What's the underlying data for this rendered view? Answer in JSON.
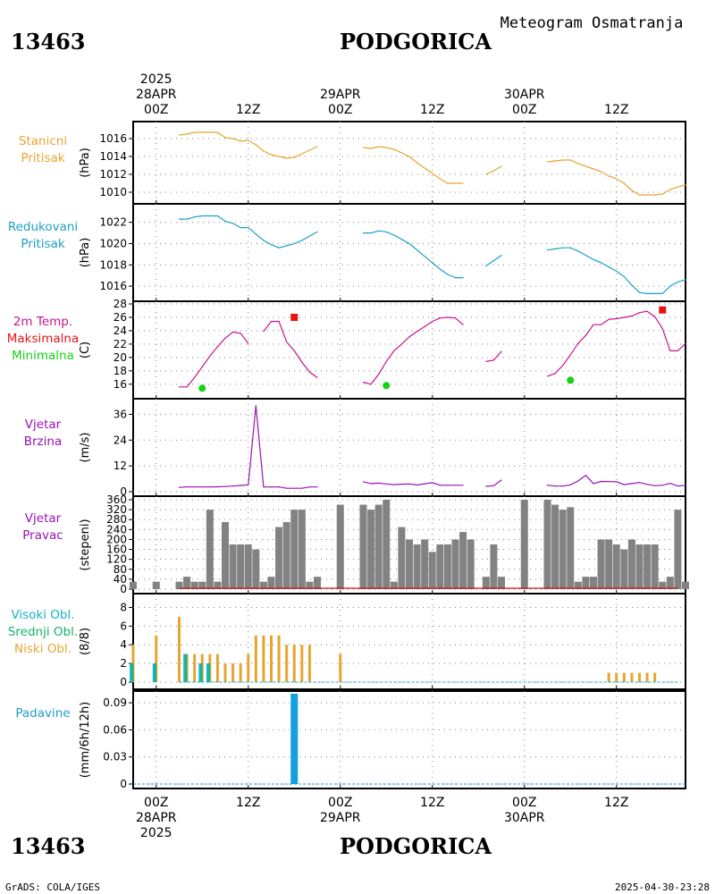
{
  "header": {
    "station_id": "13463",
    "station_name": "PODGORICA",
    "product": "Meteogram Osmatranja"
  },
  "footer": {
    "station_id": "13463",
    "station_name": "PODGORICA",
    "credit": "GrADS: COLA/IGES",
    "timestamp": "2025-04-30-23:28"
  },
  "time_axis": {
    "year": "2025",
    "ticks": [
      {
        "hour": 0,
        "top": [
          "2025",
          "28APR",
          "00Z"
        ],
        "bottom": [
          "00Z",
          "28APR",
          "2025"
        ]
      },
      {
        "hour": 12,
        "top": [
          "12Z"
        ],
        "bottom": [
          "12Z"
        ]
      },
      {
        "hour": 24,
        "top": [
          "29APR",
          "00Z"
        ],
        "bottom": [
          "00Z",
          "29APR"
        ]
      },
      {
        "hour": 36,
        "top": [
          "12Z"
        ],
        "bottom": [
          "12Z"
        ]
      },
      {
        "hour": 48,
        "top": [
          "30APR",
          "00Z"
        ],
        "bottom": [
          "00Z",
          "30APR"
        ]
      },
      {
        "hour": 60,
        "top": [
          "12Z"
        ],
        "bottom": [
          "12Z"
        ]
      }
    ],
    "range_hours": [
      -3,
      69
    ]
  },
  "colors": {
    "station_pressure": "#e6a532",
    "reduced_pressure": "#1ea0c8",
    "temp": "#c8148c",
    "tmax": "#e61414",
    "tmin": "#14d214",
    "wind": "#9614b4",
    "wind_dir": "#828282",
    "wind_dir_zero": "#c81414",
    "cloud_high": "#14b4c8",
    "cloud_mid": "#14b464",
    "cloud_low": "#e6a532",
    "precip": "#14a0dc",
    "label_station": "#e6a532",
    "label_reduced": "#1ea0c8",
    "label_wind": "#9614b4",
    "label_precip": "#1ea0c8"
  },
  "chart_data": [
    {
      "type": "line",
      "panel": "station_pressure",
      "label": [
        "Stanicni",
        "Pritisak"
      ],
      "label_color": "station_pressure",
      "ylabel": "(hPa)",
      "ylim": [
        1009.2,
        1017.2
      ],
      "yticks": [
        1010,
        1012,
        1014,
        1016
      ],
      "series": [
        {
          "x": [
            3,
            4,
            5,
            6,
            7,
            8,
            9,
            10,
            11,
            12,
            13,
            14,
            15,
            16,
            17,
            18,
            19,
            20,
            21,
            27,
            28,
            29,
            30,
            31,
            32,
            33,
            34,
            35,
            36,
            37,
            38,
            39,
            40,
            43,
            44,
            45,
            51,
            52,
            53,
            54,
            55,
            56,
            57,
            58,
            59,
            60,
            61,
            62,
            63,
            64,
            65,
            66,
            67,
            68,
            69
          ],
          "y": [
            1016.4,
            1016.5,
            1016.7,
            1016.7,
            1016.7,
            1016.7,
            1016.1,
            1016.0,
            1015.7,
            1015.8,
            1015.3,
            1014.6,
            1014.2,
            1014.0,
            1013.8,
            1013.9,
            1014.3,
            1014.7,
            1015.1,
            1015.0,
            1014.9,
            1015.1,
            1015.0,
            1014.8,
            1014.4,
            1014.0,
            1013.3,
            1012.7,
            1012.1,
            1011.5,
            1011.0,
            1011.0,
            1011.0,
            1012.0,
            1012.4,
            1012.9,
            1013.4,
            1013.5,
            1013.6,
            1013.6,
            1013.2,
            1012.9,
            1012.6,
            1012.3,
            1011.8,
            1011.5,
            1011.0,
            1010.2,
            1009.7,
            1009.7,
            1009.7,
            1009.8,
            1010.3,
            1010.6,
            1010.8
          ],
          "breaks_after": [
            21,
            40,
            45
          ]
        }
      ]
    },
    {
      "type": "line",
      "panel": "reduced_pressure",
      "label": [
        "Redukovani",
        "Pritisak"
      ],
      "label_color": "reduced_pressure",
      "ylabel": "(hPa)",
      "ylim": [
        1015.0,
        1023.4
      ],
      "yticks": [
        1016,
        1018,
        1020,
        1022
      ],
      "series": [
        {
          "x": [
            3,
            4,
            5,
            6,
            7,
            8,
            9,
            10,
            11,
            12,
            13,
            14,
            15,
            16,
            17,
            18,
            19,
            20,
            21,
            27,
            28,
            29,
            30,
            31,
            32,
            33,
            34,
            35,
            36,
            37,
            38,
            39,
            40,
            43,
            44,
            45,
            51,
            52,
            53,
            54,
            55,
            56,
            57,
            58,
            59,
            60,
            61,
            62,
            63,
            64,
            65,
            66,
            67,
            68,
            69
          ],
          "y": [
            1022.3,
            1022.3,
            1022.5,
            1022.6,
            1022.6,
            1022.6,
            1022.1,
            1021.9,
            1021.5,
            1021.5,
            1020.9,
            1020.3,
            1019.9,
            1019.6,
            1019.8,
            1020.0,
            1020.3,
            1020.7,
            1021.1,
            1021.0,
            1021.0,
            1021.2,
            1021.1,
            1020.8,
            1020.4,
            1020.0,
            1019.4,
            1018.8,
            1018.2,
            1017.6,
            1017.1,
            1016.8,
            1016.8,
            1017.9,
            1018.4,
            1018.9,
            1019.4,
            1019.5,
            1019.6,
            1019.6,
            1019.3,
            1018.9,
            1018.5,
            1018.2,
            1017.8,
            1017.4,
            1016.9,
            1016.1,
            1015.4,
            1015.3,
            1015.3,
            1015.3,
            1016.0,
            1016.4,
            1016.6
          ],
          "breaks_after": [
            21,
            40,
            45
          ]
        }
      ]
    },
    {
      "type": "line",
      "panel": "temperature",
      "label": [
        "2m Temp.",
        "Maksimalna",
        "Minimalna"
      ],
      "label_colors": [
        "temp",
        "tmax",
        "tmin"
      ],
      "ylabel": "(C)",
      "ylim": [
        14.5,
        28
      ],
      "yticks": [
        16,
        18,
        20,
        22,
        24,
        26,
        28
      ],
      "series": [
        {
          "name": "2m Temp.",
          "x": [
            3,
            4,
            5,
            6,
            7,
            8,
            9,
            10,
            11,
            12,
            14,
            15,
            16,
            17,
            18,
            19,
            20,
            21,
            27,
            28,
            29,
            30,
            31,
            32,
            33,
            34,
            35,
            36,
            37,
            38,
            39,
            40,
            43,
            44,
            45,
            51,
            52,
            53,
            54,
            55,
            56,
            57,
            58,
            59,
            60,
            61,
            62,
            63,
            64,
            65,
            66,
            67,
            68,
            69
          ],
          "y": [
            15.6,
            15.6,
            17.0,
            18.6,
            20.2,
            21.6,
            22.9,
            23.8,
            23.6,
            22.1,
            23.9,
            25.4,
            25.4,
            22.3,
            21.0,
            19.3,
            17.8,
            17.0,
            16.3,
            16.0,
            17.5,
            19.4,
            21.0,
            22.0,
            23.1,
            23.9,
            24.6,
            25.4,
            25.9,
            26.0,
            25.9,
            24.9,
            19.4,
            19.6,
            20.9,
            17.2,
            17.6,
            18.8,
            20.4,
            22.1,
            23.3,
            24.9,
            24.9,
            25.7,
            25.8,
            26.0,
            26.2,
            26.7,
            26.9,
            26.1,
            24.3,
            21.0,
            21.0,
            22.1
          ],
          "breaks_after": [
            12,
            21,
            40,
            45
          ]
        }
      ],
      "tmax": [
        {
          "x": 18,
          "y": 26
        },
        {
          "x": 66,
          "y": 27.1
        }
      ],
      "tmin": [
        {
          "x": 6,
          "y": 15.4
        },
        {
          "x": 30,
          "y": 15.8
        },
        {
          "x": 54,
          "y": 16.6
        }
      ]
    },
    {
      "type": "line",
      "panel": "wind_speed",
      "label": [
        "Vjetar",
        "Brzina"
      ],
      "label_color": "wind",
      "ylabel": "(m/s)",
      "ylim": [
        0,
        42
      ],
      "yticks": [
        0,
        12,
        24,
        36
      ],
      "series": [
        {
          "x": [
            3,
            4,
            5,
            6,
            7,
            8,
            9,
            10,
            11,
            12,
            13,
            14,
            15,
            16,
            17,
            18,
            19,
            20,
            21,
            27,
            28,
            29,
            30,
            31,
            32,
            33,
            34,
            35,
            36,
            37,
            38,
            39,
            40,
            43,
            44,
            45,
            51,
            52,
            53,
            54,
            55,
            56,
            57,
            58,
            59,
            60,
            61,
            62,
            63,
            64,
            65,
            66,
            67,
            68,
            69
          ],
          "y": [
            2,
            2.2,
            2.2,
            2.2,
            2.2,
            2.3,
            2.4,
            2.6,
            2.9,
            3.2,
            40,
            2.2,
            2.2,
            2.2,
            1.6,
            1.6,
            1.6,
            2.2,
            2.2,
            4.6,
            3.8,
            4.0,
            3.6,
            3.3,
            3.5,
            3.6,
            3.1,
            3.7,
            4.2,
            3.0,
            3.0,
            3.0,
            3.0,
            2.5,
            2.8,
            5.4,
            3.0,
            2.6,
            2.6,
            3.2,
            5.0,
            7.6,
            3.8,
            4.8,
            4.7,
            4.6,
            3.3,
            3.8,
            4.3,
            3.4,
            2.8,
            3.0,
            3.9,
            2.6,
            3.0
          ],
          "breaks_after": [
            21,
            40,
            45
          ]
        }
      ]
    },
    {
      "type": "bar",
      "panel": "wind_direction",
      "label": [
        "Vjetar",
        "Pravac"
      ],
      "label_color": "wind",
      "ylabel": "(stepeni)",
      "ylim": [
        0,
        360
      ],
      "yticks": [
        0,
        40,
        80,
        120,
        160,
        200,
        240,
        280,
        320,
        360
      ],
      "x": [
        -3,
        0,
        3,
        4,
        5,
        6,
        7,
        8,
        9,
        10,
        11,
        12,
        13,
        14,
        15,
        16,
        17,
        18,
        19,
        20,
        21,
        24,
        27,
        28,
        29,
        30,
        31,
        32,
        33,
        34,
        35,
        36,
        37,
        38,
        39,
        40,
        41,
        43,
        44,
        45,
        48,
        51,
        52,
        53,
        54,
        55,
        56,
        57,
        58,
        59,
        60,
        61,
        62,
        63,
        64,
        65,
        66,
        67,
        68,
        69
      ],
      "values": [
        30,
        30,
        30,
        50,
        30,
        30,
        320,
        30,
        270,
        180,
        180,
        180,
        160,
        30,
        50,
        250,
        270,
        320,
        320,
        30,
        50,
        340,
        340,
        320,
        340,
        360,
        30,
        250,
        200,
        180,
        200,
        150,
        180,
        180,
        200,
        230,
        200,
        50,
        180,
        50,
        360,
        360,
        340,
        320,
        330,
        30,
        50,
        50,
        200,
        200,
        180,
        160,
        200,
        180,
        180,
        180,
        30,
        50,
        320,
        30
      ],
      "zero_line": {
        "x_start": 3,
        "x_end": 68
      }
    },
    {
      "type": "bar",
      "panel": "clouds",
      "label": [
        "Visoki Obl.",
        "Srednji Obl.",
        "Niski Obl."
      ],
      "label_colors": [
        "cloud_high",
        "cloud_mid",
        "cloud_low"
      ],
      "ylabel": "(8/8)",
      "ylim": [
        0,
        9
      ],
      "yticks": [
        0,
        2,
        4,
        6,
        8
      ],
      "x": [
        -3,
        0,
        3,
        4,
        5,
        6,
        7,
        8,
        9,
        10,
        11,
        12,
        13,
        14,
        15,
        16,
        17,
        18,
        19,
        20,
        24,
        59,
        60,
        61,
        62,
        63,
        64,
        65
      ],
      "series": [
        {
          "name": "Niski Obl.",
          "values": [
            4,
            5,
            7,
            3,
            3,
            3,
            3,
            3,
            2,
            2,
            2,
            3,
            5,
            5,
            5,
            5,
            4,
            4,
            4,
            4,
            3,
            1,
            1,
            1,
            1,
            1,
            1,
            1
          ]
        },
        {
          "name": "Srednji Obl.",
          "values": [
            2,
            2,
            0,
            3,
            0,
            2,
            2,
            0,
            0,
            0,
            0,
            0,
            0,
            0,
            0,
            0,
            0,
            0,
            0,
            0,
            0,
            0,
            0,
            0,
            0,
            0,
            0,
            0
          ]
        },
        {
          "name": "Visoki Obl.",
          "values": [
            2,
            2,
            0,
            3,
            0,
            2,
            2,
            0,
            0,
            0,
            0,
            0,
            0,
            0,
            0,
            0,
            0,
            0,
            0,
            0,
            0,
            0,
            0,
            0,
            0,
            0,
            0,
            0
          ]
        }
      ],
      "zero_line": {
        "x_start": 3,
        "x_end": 68
      }
    },
    {
      "type": "bar",
      "panel": "precipitation",
      "label": [
        "Padavine"
      ],
      "label_color": "label_precip",
      "ylabel": "(mm/6h/12h)",
      "ylim": [
        0,
        0.1
      ],
      "yticks": [
        0,
        0.03,
        0.06,
        0.09
      ],
      "ytick_labels": [
        "0",
        "0.03",
        "0.06",
        "0.09"
      ],
      "x": [
        18
      ],
      "values": [
        0.1
      ],
      "zero_line": {
        "x_start": -3,
        "x_end": 69
      }
    }
  ]
}
